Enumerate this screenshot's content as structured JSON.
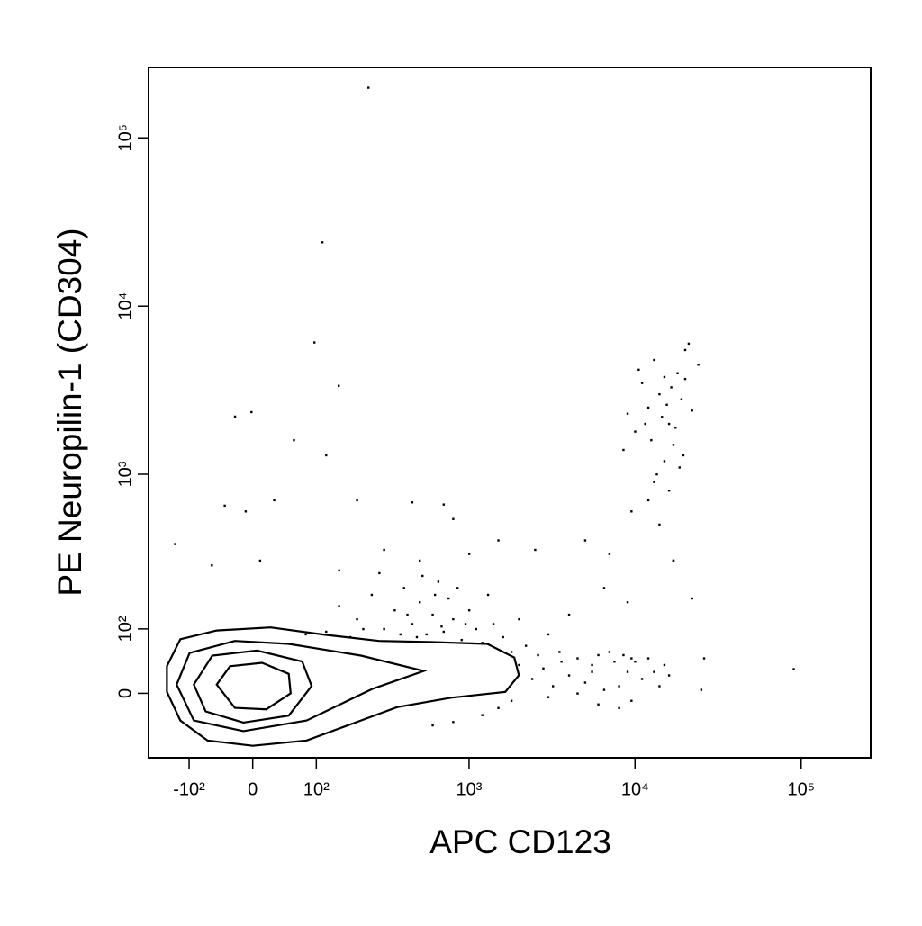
{
  "chart_data": {
    "type": "contour",
    "x_label": "APC  CD123",
    "y_label": "PE Neuropilin-1 (CD304)",
    "scale": "biexponential",
    "color": "#000000",
    "xlim": [
      -200,
      262144
    ],
    "ylim": [
      -100,
      262144
    ],
    "xticks": [
      {
        "value": -100,
        "label": "-10²"
      },
      0,
      {
        "value": 100,
        "label": "10²"
      },
      {
        "value": 1000,
        "label": "10³"
      },
      {
        "value": 10000,
        "label": "10⁴"
      },
      {
        "value": 100000,
        "label": "10⁵"
      }
    ],
    "yticks": [
      0,
      {
        "value": 100,
        "label": "10²"
      },
      {
        "value": 1000,
        "label": "10³"
      },
      {
        "value": 10000,
        "label": "10⁴"
      },
      {
        "value": 100000,
        "label": "10⁵"
      }
    ],
    "contours": [
      {
        "x": [
          -149,
          -118,
          -52,
          25,
          118,
          279,
          605,
          1289,
          1876,
          2000,
          1655,
          778,
          363,
          213,
          82,
          0,
          -67,
          -118,
          -149
        ],
        "y": [
          38,
          81,
          97,
          103,
          89,
          78,
          76,
          73,
          51,
          25,
          2,
          -6,
          -19,
          -38,
          -69,
          -78,
          -69,
          -38,
          2
        ]
      },
      {
        "x": [
          -126,
          -99,
          -25,
          52,
          213,
          531,
          252,
          82,
          -13,
          -91
        ],
        "y": [
          12,
          58,
          78,
          73,
          54,
          31,
          6,
          -38,
          -54,
          -38
        ]
      },
      {
        "x": [
          -91,
          -59,
          6,
          74,
          91,
          52,
          -13,
          -70
        ],
        "y": [
          12,
          54,
          62,
          45,
          10,
          -31,
          -41,
          -25
        ]
      },
      {
        "x": [
          -52,
          -32,
          13,
          52,
          55,
          19,
          -25
        ],
        "y": [
          12,
          38,
          43,
          27,
          0,
          -22,
          -20
        ]
      }
    ],
    "events": {
      "x": [
        238,
        112,
        96,
        149,
        -25,
        -2,
        120,
        60,
        30,
        -40,
        -10,
        200,
        450,
        700,
        800,
        -130,
        -60,
        10,
        150,
        300,
        500,
        1000,
        1500,
        2500,
        5000,
        7000,
        17000,
        22000,
        26000,
        25000,
        90000,
        6500,
        9000,
        4000,
        150,
        200,
        250,
        300,
        350,
        400,
        450,
        500,
        550,
        600,
        650,
        700,
        750,
        800,
        900,
        1000,
        1100,
        1200,
        1400,
        1600,
        1800,
        2000,
        2200,
        2600,
        3000,
        3500,
        80,
        120,
        180,
        220,
        280,
        380,
        420,
        480,
        520,
        620,
        680,
        850,
        950,
        1300,
        2000,
        2400,
        2800,
        3200,
        3600,
        4000,
        4500,
        5000,
        5500,
        6000,
        6500,
        7000,
        7500,
        8000,
        8500,
        9000,
        9500,
        10000,
        11000,
        12000,
        13000,
        14000,
        15000,
        16000,
        6000,
        8000,
        3000,
        4500,
        5500,
        9500,
        1500,
        1200,
        800,
        600,
        1800,
        12000,
        14000,
        16000,
        10000,
        18000,
        20000,
        15000,
        13000,
        17000,
        19000,
        11000,
        14500,
        16500,
        12500,
        18500,
        21000,
        9000,
        10500,
        13500,
        15500,
        17500,
        20000,
        22000,
        8500,
        12000,
        14000,
        24000,
        19500,
        11500,
        16000,
        13000,
        15000,
        9500,
        17000
      ],
      "y": [
        199000,
        24000,
        6100,
        3370,
        2210,
        2350,
        1300,
        1600,
        700,
        650,
        600,
        700,
        680,
        660,
        540,
        380,
        280,
        300,
        260,
        350,
        300,
        330,
        400,
        350,
        400,
        330,
        300,
        170,
        50,
        5,
        34,
        200,
        160,
        130,
        150,
        120,
        180,
        100,
        140,
        200,
        110,
        160,
        90,
        130,
        220,
        95,
        170,
        120,
        80,
        140,
        100,
        75,
        110,
        85,
        60,
        120,
        70,
        55,
        90,
        60,
        90,
        95,
        85,
        100,
        250,
        90,
        130,
        85,
        240,
        180,
        105,
        200,
        110,
        180,
        40,
        20,
        35,
        10,
        45,
        25,
        50,
        15,
        40,
        55,
        5,
        60,
        45,
        10,
        55,
        30,
        -10,
        45,
        20,
        50,
        30,
        10,
        40,
        25,
        -15,
        -20,
        -5,
        0,
        30,
        50,
        -20,
        -30,
        -40,
        -45,
        -10,
        2500,
        3000,
        2000,
        1800,
        4000,
        5500,
        1200,
        900,
        1500,
        2800,
        3500,
        2200,
        3300,
        1600,
        1100,
        6000,
        2300,
        4200,
        1000,
        2600,
        1900,
        3700,
        2400,
        1400,
        700,
        500,
        4500,
        1300,
        2000,
        800,
        4800,
        3800,
        600,
        300
      ]
    }
  }
}
